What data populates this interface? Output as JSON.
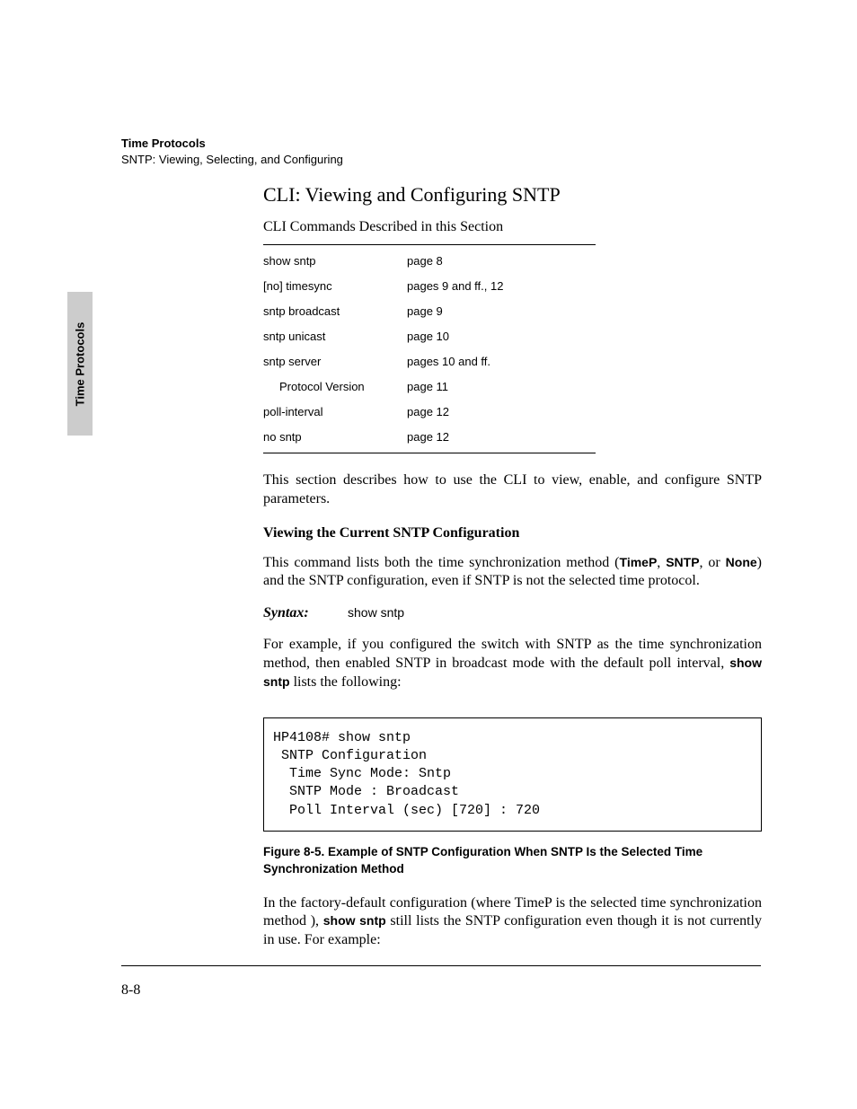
{
  "sidebar": {
    "tab_label": "Time Protocols"
  },
  "header": {
    "title": "Time Protocols",
    "subtitle": "SNTP: Viewing, Selecting, and Configuring"
  },
  "main": {
    "heading": "CLI: Viewing and Configuring SNTP",
    "table_caption": "CLI Commands Described in this Section",
    "commands": [
      {
        "cmd": "show sntp",
        "ref": "page 8",
        "indented": false
      },
      {
        "cmd": "[no] timesync",
        "ref": "pages 9 and ff., 12",
        "indented": false
      },
      {
        "cmd": "sntp broadcast",
        "ref": "page 9",
        "indented": false
      },
      {
        "cmd": "sntp unicast",
        "ref": "page 10",
        "indented": false
      },
      {
        "cmd": "sntp server",
        "ref": "pages 10 and ff.",
        "indented": false
      },
      {
        "cmd": "Protocol Version",
        "ref": "page 11",
        "indented": true
      },
      {
        "cmd": "poll-interval",
        "ref": "page 12",
        "indented": false
      },
      {
        "cmd": "no sntp",
        "ref": "page 12",
        "indented": false
      }
    ],
    "intro_para": "This section describes how to use the CLI to view, enable, and configure SNTP parameters.",
    "sub_heading": "Viewing the Current SNTP Configuration",
    "view_para_pre": "This command lists both the time synchronization method (",
    "view_para_timep": "TimeP",
    "view_para_sep1": ", ",
    "view_para_sntp": "SNTP",
    "view_para_sep2": ", or ",
    "view_para_none": "None",
    "view_para_post": ") and the SNTP configuration, even if SNTP is not the selected time protocol.",
    "syntax_label": "Syntax:",
    "syntax_cmd": "show sntp",
    "example_para_pre": "For example, if you configured the switch with SNTP as the time synchroni­zation method, then enabled SNTP in broadcast mode with the default poll interval, ",
    "example_para_cmd": "show sntp",
    "example_para_post": " lists the following:",
    "code_block": "HP4108# show sntp\n SNTP Configuration\n  Time Sync Mode: Sntp\n  SNTP Mode : Broadcast\n  Poll Interval (sec) [720] : 720",
    "figure_caption": "Figure 8-5.  Example of SNTP Configuration When SNTP Is the Selected Time Synchronization Method",
    "default_para_pre": "In the factory-default configuration (where TimeP is the selected time synchronization method ), ",
    "default_para_cmd": "show sntp",
    "default_para_post": " still lists the SNTP configuration even though it is not currently in use. For example:"
  },
  "footer": {
    "page_number": "8-8"
  },
  "style": {
    "background_color": "#ffffff",
    "sidebar_tab_bg": "#cccccc",
    "text_color": "#000000",
    "border_color": "#000000",
    "body_font": "Times New Roman",
    "sans_font": "Arial",
    "mono_font": "Courier New",
    "heading_fontsize": 22,
    "body_fontsize": 16,
    "table_fontsize": 13,
    "header_fontsize": 13
  }
}
